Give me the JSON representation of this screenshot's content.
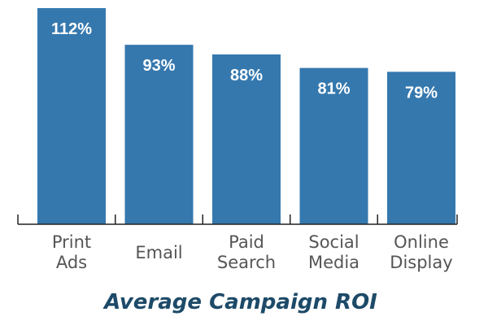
{
  "chart_data": {
    "type": "bar",
    "title": "Average Campaign ROI",
    "categories": [
      [
        "Print",
        "Ads"
      ],
      [
        "Email"
      ],
      [
        "Paid",
        "Search"
      ],
      [
        "Social",
        "Media"
      ],
      [
        "Online",
        "Display"
      ]
    ],
    "values": [
      112,
      93,
      88,
      81,
      79
    ],
    "data_labels": [
      "112%",
      "93%",
      "88%",
      "81%",
      "79%"
    ],
    "value_unit": "%",
    "ylim": [
      0,
      112
    ],
    "grid": false,
    "legend": "none",
    "bar_color": "#3578ae",
    "title_color": "#1d4a68"
  }
}
